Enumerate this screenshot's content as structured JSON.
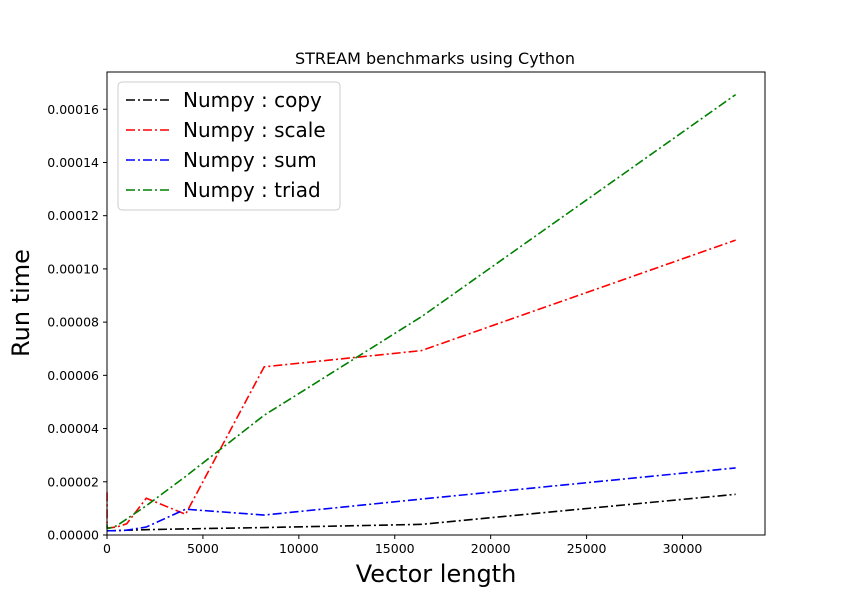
{
  "chart_data": {
    "type": "line",
    "title": "STREAM benchmarks using Cython",
    "xlabel": "Vector length",
    "ylabel": "Run time",
    "xlim": [
      0,
      34300
    ],
    "ylim": [
      0,
      0.000174
    ],
    "x_ticks": [
      0,
      5000,
      10000,
      15000,
      20000,
      25000,
      30000
    ],
    "x_tick_labels": [
      "0",
      "5000",
      "10000",
      "15000",
      "20000",
      "25000",
      "30000"
    ],
    "y_ticks": [
      0,
      2e-05,
      4e-05,
      6e-05,
      8e-05,
      0.0001,
      0.00012,
      0.00014,
      0.00016
    ],
    "y_tick_labels": [
      "0.00000",
      "0.00002",
      "0.00004",
      "0.00006",
      "0.00008",
      "0.00010",
      "0.00012",
      "0.00014",
      "0.00016"
    ],
    "grid": false,
    "legend_position": "top-left",
    "x": [
      2,
      4,
      8,
      16,
      32,
      64,
      128,
      256,
      512,
      1024,
      2048,
      4096,
      8192,
      16384,
      32768
    ],
    "series": [
      {
        "name": "Numpy : copy",
        "color": "#000000",
        "values": [
          1.5e-06,
          1.5e-06,
          1.5e-06,
          1.5e-06,
          1.5e-06,
          1.6e-06,
          1.6e-06,
          1.6e-06,
          1.7e-06,
          1.8e-06,
          2e-06,
          2.3e-06,
          2.8e-06,
          4e-06,
          1.53e-05
        ]
      },
      {
        "name": "Numpy : scale",
        "color": "#ff0000",
        "values": [
          1.6e-05,
          4e-06,
          3e-06,
          2.8e-06,
          2.7e-06,
          2.7e-06,
          2.7e-06,
          2.8e-06,
          3e-06,
          4.2e-06,
          1.38e-05,
          7.8e-06,
          6.32e-05,
          6.93e-05,
          0.0001108
        ]
      },
      {
        "name": "Numpy : sum",
        "color": "#0000ff",
        "values": [
          1.6e-06,
          1.6e-06,
          1.6e-06,
          1.6e-06,
          1.6e-06,
          1.6e-06,
          1.6e-06,
          1.6e-06,
          1.6e-06,
          1.8e-06,
          3e-06,
          9.7e-06,
          7.5e-06,
          1.35e-05,
          2.52e-05
        ]
      },
      {
        "name": "Numpy : triad",
        "color": "#008000",
        "values": [
          4e-06,
          3e-06,
          2.5e-06,
          2.5e-06,
          2.5e-06,
          2.5e-06,
          2.6e-06,
          2.8e-06,
          3.5e-06,
          6e-06,
          1.1e-05,
          2.2e-05,
          4.5e-05,
          8.2e-05,
          0.0001655
        ]
      }
    ]
  }
}
